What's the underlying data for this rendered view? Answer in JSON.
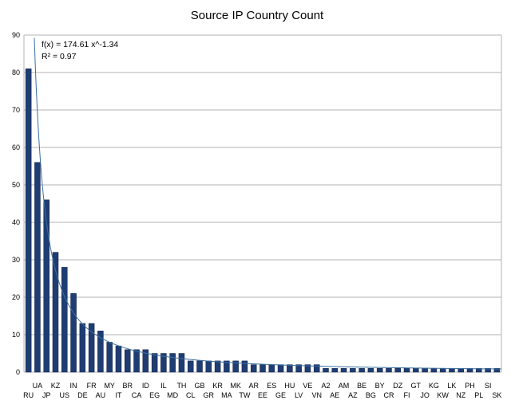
{
  "chart_data": {
    "type": "bar",
    "title": "Source IP Country Count",
    "xlabel": "",
    "ylabel": "",
    "ylim": [
      0,
      90
    ],
    "yticks": [
      0,
      10,
      20,
      30,
      40,
      50,
      60,
      70,
      80,
      90
    ],
    "grid": true,
    "legend": "none",
    "categories": [
      "RU",
      "UA",
      "JP",
      "KZ",
      "US",
      "IN",
      "DE",
      "FR",
      "AU",
      "MY",
      "IT",
      "BR",
      "CA",
      "ID",
      "EG",
      "IL",
      "MD",
      "TH",
      "CL",
      "GB",
      "GR",
      "KR",
      "MA",
      "MK",
      "TW",
      "AR",
      "EE",
      "ES",
      "GE",
      "HU",
      "LV",
      "VE",
      "VN",
      "A2",
      "AE",
      "AM",
      "AZ",
      "BE",
      "BG",
      "BY",
      "CR",
      "DZ",
      "FI",
      "GT",
      "JO",
      "KG",
      "KW",
      "LK",
      "NZ",
      "PH",
      "PL",
      "SI",
      "SK"
    ],
    "series": [
      {
        "values": [
          81,
          56,
          46,
          32,
          28,
          21,
          13,
          13,
          11,
          8,
          7,
          6,
          6,
          6,
          5,
          5,
          5,
          5,
          3,
          3,
          3,
          3,
          3,
          3,
          3,
          2,
          2,
          2,
          2,
          2,
          2,
          2,
          2,
          1,
          1,
          1,
          1,
          1,
          1,
          1,
          1,
          1,
          1,
          1,
          1,
          1,
          1,
          1,
          1,
          1,
          1,
          1,
          1
        ],
        "color": "#1f3d73"
      }
    ],
    "trendline": {
      "type": "power",
      "a": 174.61,
      "b": -1.34,
      "equation": "f(x) = 174.61 x^-1.34",
      "r2": "R² = 0.97",
      "color": "#3c6fa0"
    },
    "colors": {
      "bar": "#1f3d73",
      "grid": "#b3b3b3",
      "axis": "#b3b3b3",
      "trend": "#3c6fa0"
    }
  }
}
